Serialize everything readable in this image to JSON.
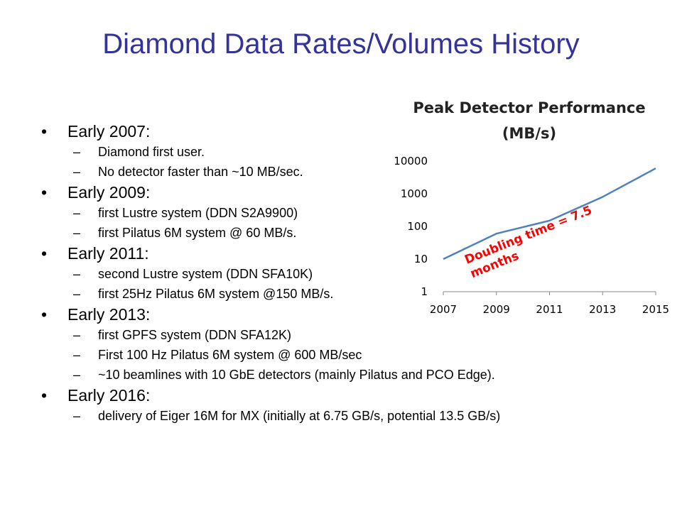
{
  "slide": {
    "title": "Diamond Data Rates/Volumes History",
    "bullets": [
      {
        "text": "Early 2007:",
        "subs": [
          "Diamond first user.",
          "No detector faster than ~10 MB/sec."
        ]
      },
      {
        "text": "Early 2009:",
        "subs": [
          "first Lustre system (DDN S2A9900)",
          "first Pilatus 6M system @ 60 MB/s."
        ]
      },
      {
        "text": "Early 2011:",
        "subs": [
          "second Lustre system (DDN SFA10K)",
          "first 25Hz Pilatus 6M system @150 MB/s."
        ]
      },
      {
        "text": "Early 2013:",
        "subs": [
          "first GPFS system (DDN SFA12K)",
          "First 100 Hz Pilatus 6M system @ 600 MB/sec",
          "~10 beamlines with 10 GbE detectors (mainly Pilatus and PCO Edge)."
        ]
      },
      {
        "text": "Early 2016:",
        "subs": [
          "delivery of Eiger 16M for MX (initially at 6.75 GB/s, potential 13.5 GB/s)"
        ]
      }
    ]
  },
  "chart_data": {
    "type": "line",
    "title_line1": "Peak Detector Performance",
    "title_line2": "(MB/s)",
    "x": [
      2007,
      2009,
      2011,
      2013,
      2015
    ],
    "x_tick_labels": [
      "2007",
      "2009",
      "2011",
      "2013",
      "2015"
    ],
    "y_scale": "log",
    "y_ticks": [
      1,
      10,
      100,
      1000,
      10000
    ],
    "y_tick_labels": [
      "1",
      "10",
      "100",
      "1000",
      "10000"
    ],
    "ylim": [
      1,
      10000
    ],
    "series": [
      {
        "values": [
          10,
          60,
          150,
          800,
          6000
        ]
      }
    ],
    "annotation_line1": "Doubling time = 7.5",
    "annotation_line2": "months",
    "line_color": "#4f81bd",
    "annotation_color": "#ff0000",
    "grid": false
  }
}
